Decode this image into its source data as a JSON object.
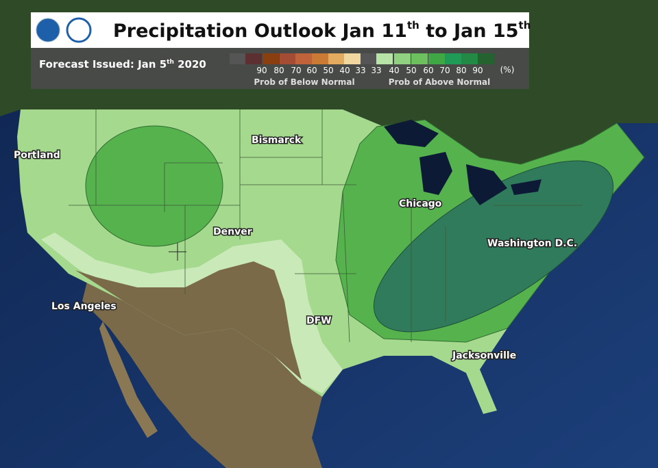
{
  "header": {
    "title": {
      "text": "Precipitation Outlook Jan 11",
      "sup1": "th",
      "middle": " to Jan 15",
      "sup2": "th"
    },
    "issued": {
      "text": "Forecast Issued: Jan 5",
      "sup": "th",
      "year": " 2020"
    }
  },
  "legend": {
    "below": {
      "values": [
        90,
        80,
        70,
        60,
        50,
        40,
        33
      ],
      "colors": [
        "#5c3030",
        "#8a3f10",
        "#a54d34",
        "#c0623a",
        "#cb7a35",
        "#e3ab60",
        "#efd79f"
      ],
      "label": "Prob of Below Normal"
    },
    "above": {
      "values": [
        33,
        40,
        50,
        60,
        70,
        80,
        90
      ],
      "colors": [
        "#b8e3a6",
        "#8fd081",
        "#6cc05d",
        "#3fa845",
        "#1f9a57",
        "#238a45",
        "#24632f"
      ],
      "label": "Prob of Above Normal"
    },
    "unit": "(%)"
  },
  "cities": [
    {
      "label": "Portland"
    },
    {
      "label": "Bismarck"
    },
    {
      "label": "Denver"
    },
    {
      "label": "Chicago"
    },
    {
      "label": "Washington D.C."
    },
    {
      "label": "Los Angeles"
    },
    {
      "label": "DFW"
    },
    {
      "label": "Jacksonville"
    }
  ]
}
